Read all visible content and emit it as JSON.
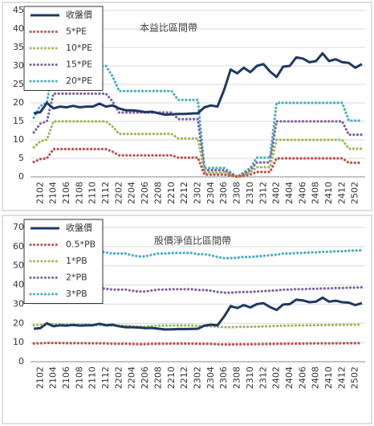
{
  "chart_data": [
    {
      "type": "line",
      "title": "本益比區間帶",
      "grid": true,
      "legend": "upper left",
      "categories": [
        null,
        "2102",
        null,
        "2104",
        null,
        "2106",
        null,
        "2108",
        null,
        "2110",
        null,
        "2112",
        null,
        "2202",
        null,
        "2204",
        null,
        "2206",
        null,
        "2208",
        null,
        "2210",
        null,
        "2212",
        null,
        "2302",
        null,
        "2304",
        null,
        "2306",
        null,
        "2308",
        null,
        "2310",
        null,
        "2312",
        null,
        "2402",
        null,
        "2404",
        null,
        "2406",
        null,
        "2408",
        null,
        "2410",
        null,
        "2412",
        null,
        "2502",
        null
      ],
      "ylim": [
        0,
        45
      ],
      "yticks": [
        0,
        5,
        10,
        15,
        20,
        25,
        30,
        35,
        40,
        45
      ],
      "series": [
        {
          "name": "收盤價",
          "color": "#1f3864",
          "style": "solid",
          "values": [
            17.2,
            17.5,
            20.0,
            18.5,
            19.0,
            18.8,
            19.2,
            18.8,
            19.0,
            19.0,
            19.8,
            19.0,
            19.3,
            18.5,
            18.0,
            18.0,
            17.8,
            17.5,
            17.6,
            17.2,
            16.8,
            16.9,
            17.0,
            17.0,
            17.1,
            17.2,
            18.8,
            19.3,
            19.0,
            23.5,
            29.0,
            28.0,
            29.5,
            28.3,
            30.0,
            30.5,
            28.5,
            27.0,
            29.8,
            30.0,
            32.3,
            32.0,
            31.0,
            31.3,
            33.4,
            31.3,
            31.8,
            31.0,
            30.8,
            29.5,
            30.5
          ]
        },
        {
          "name": "5*PE",
          "color": "#c0504d",
          "style": "dotted",
          "values": [
            4.0,
            4.8,
            5.0,
            7.5,
            7.5,
            7.5,
            7.5,
            7.5,
            7.5,
            7.5,
            7.5,
            7.5,
            6.8,
            5.8,
            5.8,
            5.8,
            5.8,
            5.8,
            5.8,
            5.8,
            5.8,
            5.8,
            5.2,
            5.2,
            5.2,
            5.2,
            0.6,
            0.6,
            0.6,
            0.6,
            0.3,
            0,
            0.3,
            0.6,
            1.3,
            1.3,
            1.3,
            5.0,
            5.0,
            5.0,
            5.0,
            5.0,
            5.0,
            5.0,
            5.0,
            5.0,
            5.0,
            5.0,
            3.8,
            3.8,
            3.8
          ]
        },
        {
          "name": "10*PE",
          "color": "#9bbb59",
          "style": "dotted",
          "values": [
            8,
            9.6,
            10,
            15,
            15,
            15,
            15,
            15,
            15,
            15,
            15,
            15,
            13.6,
            11.6,
            11.6,
            11.6,
            11.6,
            11.6,
            11.6,
            11.6,
            11.6,
            11.6,
            10.4,
            10.4,
            10.4,
            10.4,
            1.2,
            1.2,
            1.2,
            1.2,
            0.6,
            0,
            0.6,
            1.2,
            2.6,
            2.6,
            2.6,
            10,
            10,
            10,
            10,
            10,
            10,
            10,
            10,
            10,
            10,
            10,
            7.6,
            7.6,
            7.6
          ]
        },
        {
          "name": "15*PE",
          "color": "#8064a2",
          "style": "dotted",
          "values": [
            12,
            14.4,
            15,
            22.5,
            22.5,
            22.5,
            22.5,
            22.5,
            22.5,
            22.5,
            22.5,
            22.5,
            20.4,
            17.4,
            17.4,
            17.4,
            17.4,
            17.4,
            17.4,
            17.4,
            17.4,
            17.4,
            15.6,
            15.6,
            15.6,
            15.6,
            1.8,
            1.8,
            1.8,
            1.8,
            0.9,
            0,
            0.9,
            1.8,
            3.9,
            3.9,
            3.9,
            15,
            15,
            15,
            15,
            15,
            15,
            15,
            15,
            15,
            15,
            15,
            11.4,
            11.4,
            11.4
          ]
        },
        {
          "name": "20*PE",
          "color": "#4bacc6",
          "style": "dotted",
          "values": [
            16,
            19.2,
            20,
            30,
            30,
            30,
            30,
            30,
            30,
            30,
            30,
            30,
            27.2,
            23.2,
            23.2,
            23.2,
            23.2,
            23.2,
            23.2,
            23.2,
            23.2,
            23.2,
            20.8,
            20.8,
            20.8,
            20.8,
            2.4,
            2.4,
            2.4,
            2.4,
            1.2,
            0,
            1.2,
            2.4,
            5.2,
            5.2,
            5.2,
            20,
            20,
            20,
            20,
            20,
            20,
            20,
            20,
            20,
            20,
            20,
            15.2,
            15.2,
            15.2
          ]
        }
      ]
    },
    {
      "type": "line",
      "title": "股價淨值比區間帶",
      "grid": true,
      "legend": "upper left",
      "categories": [
        null,
        "2102",
        null,
        "2104",
        null,
        "2106",
        null,
        "2108",
        null,
        "2110",
        null,
        "2112",
        null,
        "2202",
        null,
        "2204",
        null,
        "2206",
        null,
        "2208",
        null,
        "2210",
        null,
        "2212",
        null,
        "2302",
        null,
        "2304",
        null,
        "2306",
        null,
        "2308",
        null,
        "2310",
        null,
        "2312",
        null,
        "2402",
        null,
        "2404",
        null,
        "2406",
        null,
        "2408",
        null,
        "2410",
        null,
        "2412",
        null,
        "2502",
        null
      ],
      "ylim": [
        0,
        70
      ],
      "yticks": [
        0,
        10,
        20,
        30,
        40,
        50,
        60,
        70
      ],
      "series": [
        {
          "name": "收盤價",
          "color": "#1f3864",
          "style": "solid",
          "values": [
            17.2,
            17.5,
            20.0,
            18.5,
            19.0,
            18.8,
            19.2,
            18.8,
            19.0,
            19.0,
            19.8,
            19.0,
            19.3,
            18.5,
            18.0,
            18.0,
            17.8,
            17.5,
            17.6,
            17.2,
            16.8,
            16.9,
            17.0,
            17.0,
            17.1,
            17.2,
            18.8,
            19.3,
            19.0,
            23.5,
            29.0,
            28.0,
            29.5,
            28.3,
            30.0,
            30.5,
            28.5,
            27.0,
            29.8,
            30.0,
            32.3,
            32.0,
            31.0,
            31.3,
            33.4,
            31.3,
            31.8,
            31.0,
            30.8,
            29.5,
            30.5
          ]
        },
        {
          "name": "0.5*PB",
          "color": "#c0504d",
          "style": "dotted",
          "values": [
            9.5,
            9.6,
            9.75,
            9.75,
            9.75,
            9.65,
            9.65,
            9.65,
            9.65,
            9.6,
            9.6,
            9.5,
            9.4,
            9.4,
            9.4,
            9.25,
            9.15,
            9.15,
            9.3,
            9.4,
            9.4,
            9.45,
            9.45,
            9.45,
            9.45,
            9.35,
            9.35,
            9.25,
            9.1,
            9.0,
            9.0,
            9.05,
            9.1,
            9.1,
            9.15,
            9.2,
            9.25,
            9.3,
            9.4,
            9.4,
            9.45,
            9.45,
            9.5,
            9.5,
            9.55,
            9.55,
            9.6,
            9.6,
            9.65,
            9.65,
            9.7
          ]
        },
        {
          "name": "1*PB",
          "color": "#9bbb59",
          "style": "dotted",
          "values": [
            19.0,
            19.2,
            19.5,
            19.5,
            19.5,
            19.3,
            19.3,
            19.3,
            19.3,
            19.2,
            19.2,
            19.0,
            18.8,
            18.8,
            18.8,
            18.5,
            18.3,
            18.3,
            18.6,
            18.8,
            18.8,
            18.9,
            18.9,
            18.9,
            18.9,
            18.7,
            18.7,
            18.5,
            18.2,
            18.0,
            18.0,
            18.1,
            18.2,
            18.2,
            18.3,
            18.4,
            18.5,
            18.6,
            18.8,
            18.8,
            18.9,
            18.9,
            19.0,
            19.0,
            19.1,
            19.1,
            19.2,
            19.2,
            19.3,
            19.3,
            19.4
          ]
        },
        {
          "name": "2*PB",
          "color": "#8064a2",
          "style": "dotted",
          "values": [
            38,
            38.4,
            39,
            39,
            39,
            38.6,
            38.6,
            38.6,
            38.6,
            38.4,
            38.4,
            38,
            37.6,
            37.6,
            37.6,
            37,
            36.6,
            36.6,
            37.2,
            37.6,
            37.6,
            37.8,
            37.8,
            37.8,
            37.8,
            37.4,
            37.4,
            37,
            36.4,
            36,
            36,
            36.2,
            36.4,
            36.4,
            36.6,
            36.8,
            37,
            37.2,
            37.6,
            37.6,
            37.8,
            37.8,
            38,
            38,
            38.2,
            38.2,
            38.4,
            38.4,
            38.6,
            38.6,
            38.8
          ]
        },
        {
          "name": "3*PB",
          "color": "#4bacc6",
          "style": "dotted",
          "values": [
            57,
            57.6,
            58.5,
            58.5,
            58.5,
            57.9,
            57.9,
            57.9,
            57.9,
            57.6,
            57.6,
            57,
            56.4,
            56.4,
            56.4,
            55.5,
            54.9,
            54.9,
            55.8,
            56.4,
            56.4,
            56.7,
            56.7,
            56.7,
            56.7,
            56.1,
            56.1,
            55.5,
            54.6,
            54,
            54,
            54.3,
            54.6,
            54.6,
            54.9,
            55.2,
            55.5,
            55.8,
            56.4,
            56.4,
            56.7,
            56.7,
            57,
            57,
            57.3,
            57.3,
            57.6,
            57.6,
            57.9,
            57.9,
            58.2
          ]
        }
      ]
    }
  ]
}
